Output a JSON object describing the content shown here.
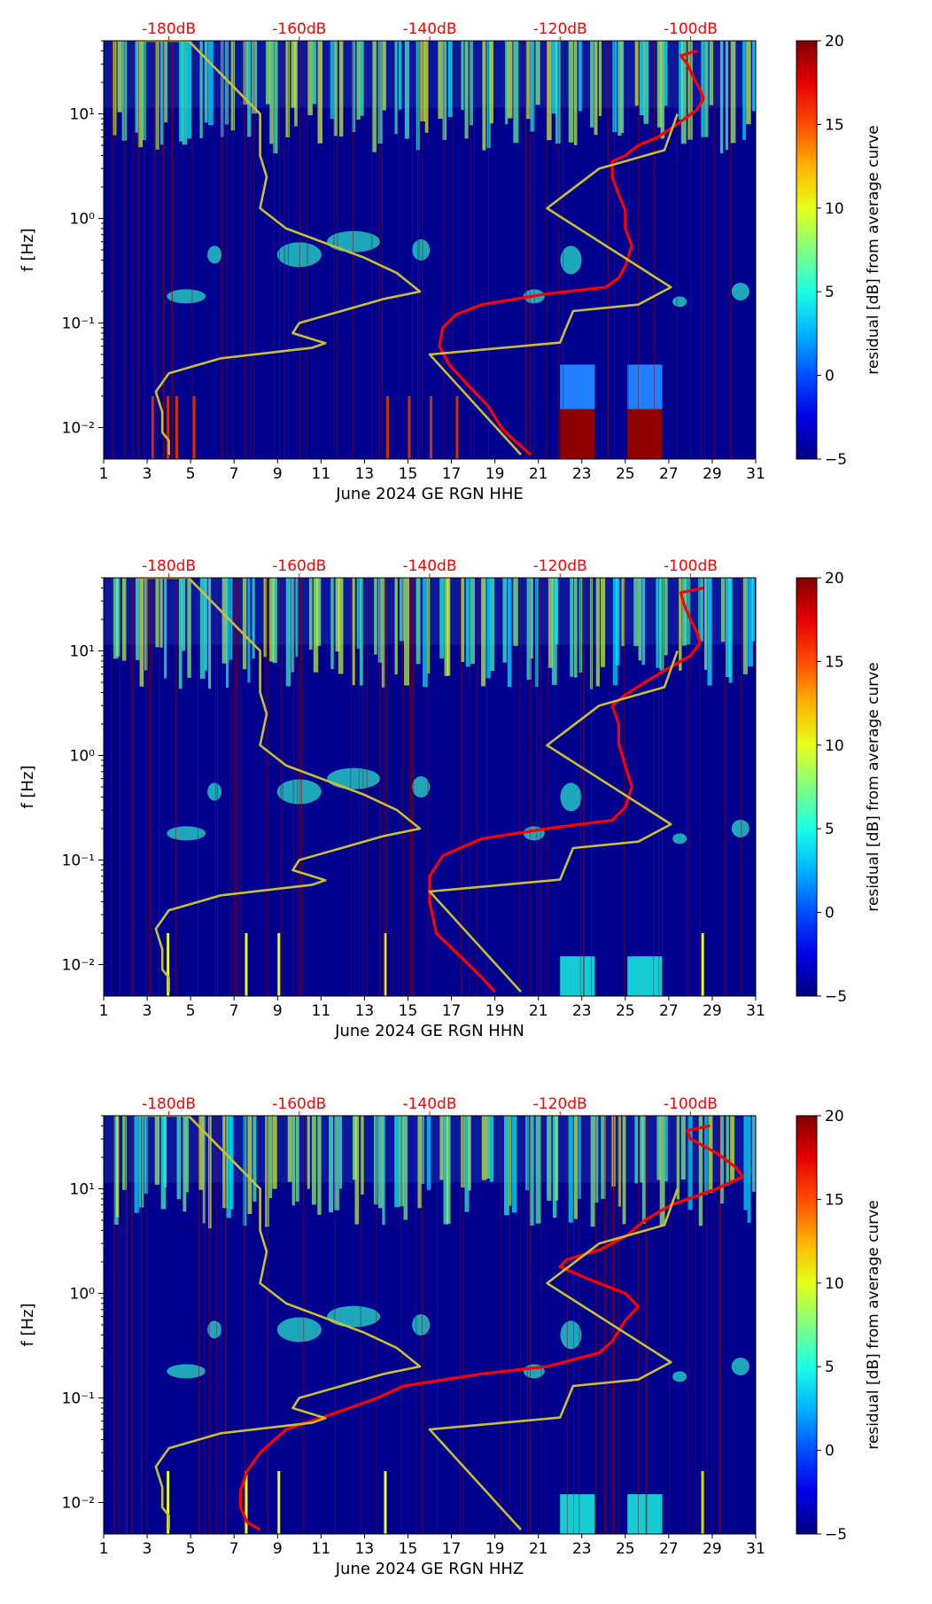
{
  "chart_data": [
    {
      "type": "heatmap",
      "title": "",
      "xlabel": "June 2024 GE RGN  HHE",
      "ylabel": "f [Hz]",
      "x_ticks": [
        "1",
        "3",
        "5",
        "7",
        "9",
        "11",
        "13",
        "15",
        "17",
        "19",
        "21",
        "23",
        "25",
        "27",
        "29",
        "31"
      ],
      "xlim": [
        1,
        31
      ],
      "y_ticks": [
        "10⁻²",
        "10⁻¹",
        "10⁰",
        "10¹"
      ],
      "ylim": [
        0.005,
        50
      ],
      "y_scale": "log",
      "top_axis_ticks": [
        "-180dB",
        "-160dB",
        "-140dB",
        "-120dB",
        "-100dB"
      ],
      "top_axis_color": "#ff0000",
      "colorbar": {
        "label": "residual [dB] from average curve",
        "ticks": [
          "−5",
          "0",
          "5",
          "10",
          "15",
          "20"
        ],
        "range": [
          -5,
          20
        ],
        "colormap": "jet"
      },
      "series": [
        {
          "style": "red-line",
          "color": "#ff0000",
          "points": [
            [
              -99,
              40
            ],
            [
              -101.5,
              36
            ],
            [
              -100.5,
              30
            ],
            [
              -99.5,
              22
            ],
            [
              -98.5,
              17
            ],
            [
              -98,
              14
            ],
            [
              -99,
              11
            ],
            [
              -102,
              8
            ],
            [
              -105,
              6
            ],
            [
              -108,
              5
            ],
            [
              -110,
              4
            ],
            [
              -112,
              3.5
            ],
            [
              -112,
              2.5
            ],
            [
              -111,
              1.7
            ],
            [
              -110,
              1.2
            ],
            [
              -110,
              0.8
            ],
            [
              -109,
              0.55
            ],
            [
              -110,
              0.35
            ],
            [
              -111,
              0.27
            ],
            [
              -113,
              0.22
            ],
            [
              -122,
              0.19
            ],
            [
              -132,
              0.15
            ],
            [
              -136,
              0.12
            ],
            [
              -138,
              0.09
            ],
            [
              -138.5,
              0.06
            ],
            [
              -137,
              0.04
            ],
            [
              -134,
              0.025
            ],
            [
              -131,
              0.016
            ],
            [
              -129,
              0.01
            ],
            [
              -127,
              0.0075
            ],
            [
              -124.5,
              0.0055
            ]
          ]
        },
        {
          "style": "yellow-line",
          "color": "#c8c032",
          "points": [
            [
              -180,
              0.0055
            ],
            [
              -180,
              0.0075
            ],
            [
              -181,
              0.009
            ],
            [
              -181,
              0.014
            ],
            [
              -182,
              0.022
            ],
            [
              -180,
              0.033
            ],
            [
              -172,
              0.046
            ],
            [
              -158,
              0.058
            ],
            [
              -156,
              0.064
            ],
            [
              -161,
              0.08
            ],
            [
              -160,
              0.1
            ],
            [
              -147,
              0.17
            ],
            [
              -141.5,
              0.2
            ],
            [
              -145,
              0.3
            ],
            [
              -150,
              0.42
            ],
            [
              -162,
              0.8
            ],
            [
              -166,
              1.25
            ],
            [
              -165,
              2.5
            ],
            [
              -166,
              4
            ],
            [
              -166,
              10
            ],
            [
              -177,
              50
            ],
            [
              -185,
              50
            ]
          ]
        },
        {
          "style": "yellow-line",
          "color": "#c8c032",
          "points": [
            [
              -126,
              0.0055
            ],
            [
              -140,
              0.05
            ],
            [
              -120,
              0.065
            ],
            [
              -118,
              0.13
            ],
            [
              -108,
              0.15
            ],
            [
              -103,
              0.22
            ],
            [
              -122,
              1.25
            ],
            [
              -114,
              3
            ],
            [
              -104,
              4.5
            ],
            [
              -102,
              10
            ]
          ]
        }
      ]
    },
    {
      "type": "heatmap",
      "title": "",
      "xlabel": "June 2024 GE RGN  HHN",
      "ylabel": "f [Hz]",
      "x_ticks": [
        "1",
        "3",
        "5",
        "7",
        "9",
        "11",
        "13",
        "15",
        "17",
        "19",
        "21",
        "23",
        "25",
        "27",
        "29",
        "31"
      ],
      "xlim": [
        1,
        31
      ],
      "y_ticks": [
        "10⁻²",
        "10⁻¹",
        "10⁰",
        "10¹"
      ],
      "ylim": [
        0.005,
        50
      ],
      "y_scale": "log",
      "top_axis_ticks": [
        "-180dB",
        "-160dB",
        "-140dB",
        "-120dB",
        "-100dB"
      ],
      "top_axis_color": "#ff0000",
      "colorbar": {
        "label": "residual [dB] from average curve",
        "ticks": [
          "−5",
          "0",
          "5",
          "10",
          "15",
          "20"
        ],
        "range": [
          -5,
          20
        ],
        "colormap": "jet"
      },
      "series": [
        {
          "style": "red-line",
          "color": "#ff0000",
          "points": [
            [
              -98,
              40
            ],
            [
              -101.5,
              36
            ],
            [
              -101,
              28
            ],
            [
              -100,
              20
            ],
            [
              -99,
              15
            ],
            [
              -98.5,
              12
            ],
            [
              -100,
              9
            ],
            [
              -104,
              6.5
            ],
            [
              -107,
              5
            ],
            [
              -110,
              3.8
            ],
            [
              -112,
              3
            ],
            [
              -111,
              2
            ],
            [
              -111,
              1.3
            ],
            [
              -110,
              0.8
            ],
            [
              -109,
              0.5
            ],
            [
              -110,
              0.32
            ],
            [
              -112,
              0.24
            ],
            [
              -122,
              0.2
            ],
            [
              -132,
              0.16
            ],
            [
              -138,
              0.11
            ],
            [
              -140,
              0.07
            ],
            [
              -140,
              0.04
            ],
            [
              -139,
              0.02
            ],
            [
              -134,
              0.01
            ],
            [
              -132,
              0.0075
            ],
            [
              -130,
              0.0055
            ]
          ]
        },
        {
          "style": "yellow-line",
          "color": "#c8c032",
          "points": [
            [
              -180,
              0.0055
            ],
            [
              -180,
              0.0075
            ],
            [
              -181,
              0.009
            ],
            [
              -181,
              0.014
            ],
            [
              -182,
              0.022
            ],
            [
              -180,
              0.033
            ],
            [
              -172,
              0.046
            ],
            [
              -158,
              0.058
            ],
            [
              -156,
              0.064
            ],
            [
              -161,
              0.08
            ],
            [
              -160,
              0.1
            ],
            [
              -147,
              0.17
            ],
            [
              -141.5,
              0.2
            ],
            [
              -145,
              0.3
            ],
            [
              -150,
              0.42
            ],
            [
              -162,
              0.8
            ],
            [
              -166,
              1.25
            ],
            [
              -165,
              2.5
            ],
            [
              -166,
              4
            ],
            [
              -166,
              10
            ],
            [
              -177,
              50
            ],
            [
              -185,
              50
            ]
          ]
        },
        {
          "style": "yellow-line",
          "color": "#c8c032",
          "points": [
            [
              -126,
              0.0055
            ],
            [
              -140,
              0.05
            ],
            [
              -120,
              0.065
            ],
            [
              -118,
              0.13
            ],
            [
              -108,
              0.15
            ],
            [
              -103,
              0.22
            ],
            [
              -122,
              1.25
            ],
            [
              -114,
              3
            ],
            [
              -104,
              4.5
            ],
            [
              -102,
              10
            ]
          ]
        }
      ]
    },
    {
      "type": "heatmap",
      "title": "",
      "xlabel": "June 2024 GE RGN  HHZ",
      "ylabel": "f [Hz]",
      "x_ticks": [
        "1",
        "3",
        "5",
        "7",
        "9",
        "11",
        "13",
        "15",
        "17",
        "19",
        "21",
        "23",
        "25",
        "27",
        "29",
        "31"
      ],
      "xlim": [
        1,
        31
      ],
      "y_ticks": [
        "10⁻²",
        "10⁻¹",
        "10⁰",
        "10¹"
      ],
      "ylim": [
        0.005,
        50
      ],
      "y_scale": "log",
      "top_axis_ticks": [
        "-180dB",
        "-160dB",
        "-140dB",
        "-120dB",
        "-100dB"
      ],
      "top_axis_color": "#ff0000",
      "colorbar": {
        "label": "residual [dB] from average curve",
        "ticks": [
          "−5",
          "0",
          "5",
          "10",
          "15",
          "20"
        ],
        "range": [
          -5,
          20
        ],
        "colormap": "jet"
      },
      "series": [
        {
          "style": "red-line",
          "color": "#ff0000",
          "points": [
            [
              -97,
              40
            ],
            [
              -100.5,
              36
            ],
            [
              -100,
              30
            ],
            [
              -96,
              22
            ],
            [
              -93,
              16
            ],
            [
              -92,
              13
            ],
            [
              -96,
              10
            ],
            [
              -103,
              7
            ],
            [
              -107,
              5
            ],
            [
              -110,
              3.5
            ],
            [
              -114,
              2.6
            ],
            [
              -119,
              2.1
            ],
            [
              -120,
              1.8
            ],
            [
              -116,
              1.4
            ],
            [
              -110,
              1.0
            ],
            [
              -108,
              0.75
            ],
            [
              -110,
              0.55
            ],
            [
              -112,
              0.35
            ],
            [
              -114,
              0.27
            ],
            [
              -122,
              0.2
            ],
            [
              -132,
              0.17
            ],
            [
              -144,
              0.13
            ],
            [
              -148,
              0.1
            ],
            [
              -155,
              0.07
            ],
            [
              -162,
              0.05
            ],
            [
              -166,
              0.03
            ],
            [
              -168,
              0.02
            ],
            [
              -169,
              0.013
            ],
            [
              -169,
              0.009
            ],
            [
              -168,
              0.0065
            ],
            [
              -166,
              0.0055
            ]
          ]
        },
        {
          "style": "yellow-line",
          "color": "#c8c032",
          "points": [
            [
              -180,
              0.0055
            ],
            [
              -180,
              0.0075
            ],
            [
              -181,
              0.009
            ],
            [
              -181,
              0.014
            ],
            [
              -182,
              0.022
            ],
            [
              -180,
              0.033
            ],
            [
              -172,
              0.046
            ],
            [
              -158,
              0.058
            ],
            [
              -156,
              0.064
            ],
            [
              -161,
              0.08
            ],
            [
              -160,
              0.1
            ],
            [
              -147,
              0.17
            ],
            [
              -141.5,
              0.2
            ],
            [
              -145,
              0.3
            ],
            [
              -150,
              0.42
            ],
            [
              -162,
              0.8
            ],
            [
              -166,
              1.25
            ],
            [
              -165,
              2.5
            ],
            [
              -166,
              4
            ],
            [
              -166,
              10
            ],
            [
              -177,
              50
            ],
            [
              -185,
              50
            ]
          ]
        },
        {
          "style": "yellow-line",
          "color": "#c8c032",
          "points": [
            [
              -126,
              0.0055
            ],
            [
              -140,
              0.05
            ],
            [
              -120,
              0.065
            ],
            [
              -118,
              0.13
            ],
            [
              -108,
              0.15
            ],
            [
              -103,
              0.22
            ],
            [
              -122,
              1.25
            ],
            [
              -114,
              3
            ],
            [
              -104,
              4.5
            ],
            [
              -102,
              10
            ]
          ]
        }
      ]
    }
  ]
}
